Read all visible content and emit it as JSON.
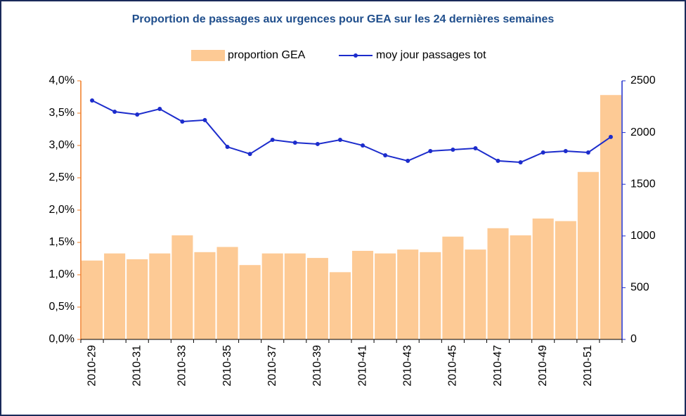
{
  "chart_data": {
    "type": "bar",
    "title": "Proportion de passages aux urgences pour GEA sur les 24 dernières semaines",
    "categories": [
      "2010-29",
      null,
      "2010-31",
      null,
      "2010-33",
      null,
      "2010-35",
      null,
      "2010-37",
      null,
      "2010-39",
      null,
      "2010-41",
      null,
      "2010-43",
      null,
      "2010-45",
      null,
      "2010-47",
      null,
      "2010-49",
      null,
      "2010-51",
      null
    ],
    "series": [
      {
        "name": "proportion GEA",
        "type": "bar",
        "color": "#fdca95",
        "values": [
          1.22,
          1.33,
          1.24,
          1.33,
          1.61,
          1.35,
          1.43,
          1.15,
          1.33,
          1.33,
          1.26,
          1.04,
          1.37,
          1.33,
          1.39,
          1.35,
          1.59,
          1.39,
          1.72,
          1.61,
          1.87,
          1.83,
          2.59,
          3.78
        ]
      },
      {
        "name": "moy jour passages tot",
        "type": "line",
        "axis": "y2",
        "color": "#1c2ccc",
        "values": [
          2310,
          2201,
          2174,
          2228,
          2106,
          2120,
          1861,
          1793,
          1929,
          1902,
          1889,
          1929,
          1875,
          1780,
          1726,
          1821,
          1834,
          1848,
          1726,
          1712,
          1807,
          1821,
          1807,
          1957
        ]
      }
    ],
    "ylim": [
      0,
      4
    ],
    "yticks": [
      {
        "value": 0,
        "label": "0,0%"
      },
      {
        "value": 0.5,
        "label": "0,5%"
      },
      {
        "value": 1,
        "label": "1,0%"
      },
      {
        "value": 1.5,
        "label": "1,5%"
      },
      {
        "value": 2,
        "label": "2,0%"
      },
      {
        "value": 2.5,
        "label": "2,5%"
      },
      {
        "value": 3,
        "label": "3,0%"
      },
      {
        "value": 3.5,
        "label": "3,5%"
      },
      {
        "value": 4,
        "label": "4,0%"
      }
    ],
    "y2lim": [
      0,
      2500
    ],
    "y2ticks": [
      0,
      500,
      1000,
      1500,
      2000,
      2500
    ],
    "y_axis_color": "#f07b22",
    "y2_axis_color": "#1c2ccc",
    "legend": "top"
  }
}
